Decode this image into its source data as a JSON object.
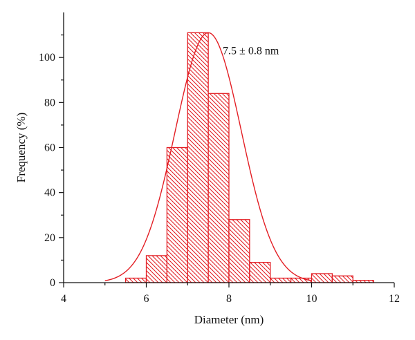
{
  "chart_data": {
    "type": "bar",
    "subtype": "histogram with normal fit curve",
    "xlabel": "Diameter (nm)",
    "ylabel": "Frequency (%)",
    "xlim": [
      4,
      12
    ],
    "ylim": [
      0,
      110
    ],
    "x_ticks": [
      4,
      6,
      8,
      10,
      12
    ],
    "x_tick_labels": [
      "4",
      "6",
      "8",
      "10",
      "12"
    ],
    "y_ticks": [
      0,
      20,
      40,
      60,
      80,
      100
    ],
    "y_tick_labels": [
      "0",
      "20",
      "40",
      "60",
      "80",
      "100"
    ],
    "bin_width": 0.5,
    "bins": [
      {
        "start": 5.5,
        "end": 6.0,
        "value": 2
      },
      {
        "start": 6.0,
        "end": 6.5,
        "value": 12
      },
      {
        "start": 6.5,
        "end": 7.0,
        "value": 60
      },
      {
        "start": 7.0,
        "end": 7.5,
        "value": 111
      },
      {
        "start": 7.5,
        "end": 8.0,
        "value": 84
      },
      {
        "start": 8.0,
        "end": 8.5,
        "value": 28
      },
      {
        "start": 8.5,
        "end": 9.0,
        "value": 9
      },
      {
        "start": 9.0,
        "end": 9.5,
        "value": 2
      },
      {
        "start": 9.5,
        "end": 10.0,
        "value": 2
      },
      {
        "start": 10.0,
        "end": 10.5,
        "value": 4
      },
      {
        "start": 10.5,
        "end": 11.0,
        "value": 3
      },
      {
        "start": 11.0,
        "end": 11.5,
        "value": 1
      }
    ],
    "fit_curve": {
      "type": "gaussian",
      "mean": 7.5,
      "sigma": 0.8,
      "peak": 111,
      "x_range": [
        5.0,
        10.0
      ]
    },
    "annotation": "7.5 ± 0.8 nm",
    "bar_color": "#e31e24",
    "bar_pattern": "diagonal-hatch",
    "grid": false
  }
}
